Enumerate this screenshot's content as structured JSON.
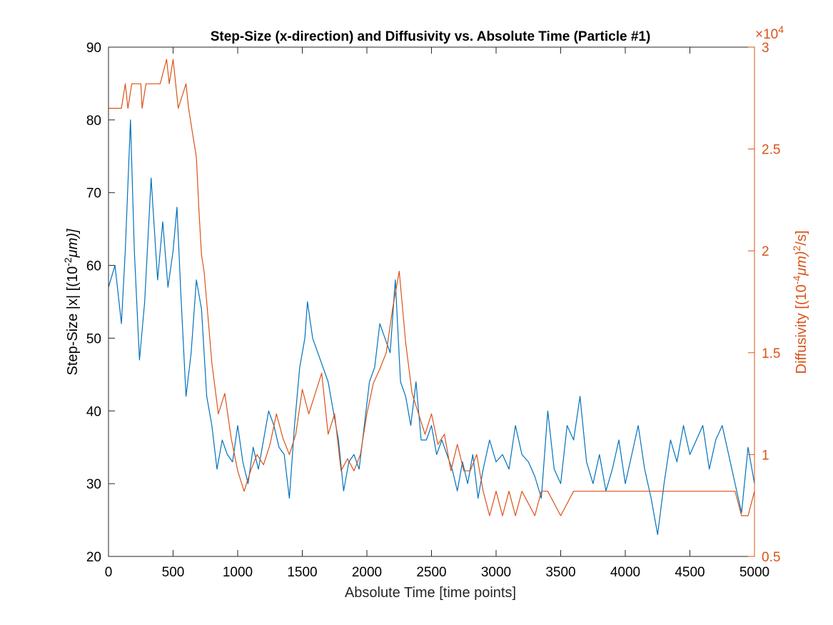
{
  "chart_data": {
    "type": "line",
    "title": "Step-Size (x-direction) and Diffusivity vs. Absolute Time (Particle #1)",
    "xlabel": "Absolute Time [time points]",
    "ylabel_left": "Step-Size |x| [(10",
    "ylabel_left_sup": "-2",
    "ylabel_left_end": "μm)]",
    "ylabel_right": "Diffusivity [(10",
    "ylabel_right_sup1": "-4",
    "ylabel_right_mid": "μm)",
    "ylabel_right_sup2": "2",
    "ylabel_right_end": "/s]",
    "xlim": [
      0,
      5000
    ],
    "ylim_left": [
      20,
      90
    ],
    "ylim_right": [
      0.5,
      3.0
    ],
    "right_axis_exponent": "×10",
    "right_axis_exponent_power": "4",
    "x_ticks": [
      "0",
      "500",
      "1000",
      "1500",
      "2000",
      "2500",
      "3000",
      "3500",
      "4000",
      "4500",
      "5000"
    ],
    "y_left_ticks": [
      "20",
      "30",
      "40",
      "50",
      "60",
      "70",
      "80",
      "90"
    ],
    "y_right_ticks": [
      "0.5",
      "1",
      "1.5",
      "2",
      "2.5",
      "3"
    ],
    "grid": false,
    "colors": {
      "step_size": "#0072BD",
      "diffusivity": "#D95319",
      "axis": "#262626"
    },
    "series": [
      {
        "axis": "left",
        "x": [
          0,
          50,
          100,
          130,
          170,
          200,
          240,
          280,
          330,
          380,
          420,
          460,
          500,
          530,
          560,
          600,
          640,
          680,
          720,
          760,
          800,
          840,
          880,
          920,
          960,
          1000,
          1040,
          1080,
          1120,
          1160,
          1200,
          1240,
          1280,
          1320,
          1360,
          1400,
          1440,
          1480,
          1520,
          1540,
          1580,
          1620,
          1660,
          1700,
          1740,
          1780,
          1820,
          1860,
          1900,
          1940,
          1980,
          2020,
          2060,
          2100,
          2140,
          2180,
          2220,
          2260,
          2300,
          2340,
          2380,
          2420,
          2460,
          2500,
          2540,
          2580,
          2620,
          2660,
          2700,
          2740,
          2780,
          2820,
          2860,
          2900,
          2950,
          3000,
          3050,
          3100,
          3150,
          3200,
          3250,
          3300,
          3350,
          3400,
          3450,
          3500,
          3550,
          3600,
          3650,
          3700,
          3750,
          3800,
          3850,
          3900,
          3950,
          4000,
          4050,
          4100,
          4150,
          4200,
          4250,
          4300,
          4350,
          4400,
          4450,
          4500,
          4550,
          4600,
          4650,
          4700,
          4750,
          4800,
          4850,
          4900,
          4950,
          5000
        ],
        "values": [
          57,
          60,
          52,
          62,
          80,
          62,
          47,
          55,
          72,
          58,
          66,
          57,
          62,
          68,
          56,
          42,
          48,
          58,
          54,
          42,
          38,
          32,
          36,
          34,
          33,
          38,
          33,
          30,
          35,
          32,
          36,
          40,
          38,
          35,
          34,
          28,
          38,
          46,
          50,
          55,
          50,
          48,
          46,
          44,
          40,
          36,
          29,
          33,
          34,
          32,
          38,
          44,
          46,
          52,
          50,
          48,
          58,
          44,
          42,
          38,
          44,
          36,
          36,
          38,
          34,
          36,
          34,
          32,
          29,
          33,
          30,
          34,
          28,
          32,
          36,
          33,
          34,
          32,
          38,
          34,
          33,
          31,
          28,
          40,
          32,
          30,
          38,
          36,
          42,
          33,
          30,
          34,
          29,
          32,
          36,
          30,
          34,
          38,
          32,
          28,
          23,
          30,
          36,
          33,
          38,
          34,
          36,
          38,
          32,
          36,
          38,
          34,
          30,
          26,
          35,
          30
        ]
      },
      {
        "axis": "right",
        "x": [
          0,
          100,
          130,
          150,
          180,
          250,
          260,
          290,
          400,
          450,
          470,
          500,
          520,
          540,
          600,
          620,
          650,
          680,
          700,
          720,
          740,
          760,
          800,
          850,
          900,
          950,
          1000,
          1050,
          1100,
          1150,
          1200,
          1250,
          1300,
          1350,
          1400,
          1450,
          1500,
          1550,
          1600,
          1650,
          1700,
          1750,
          1800,
          1850,
          1900,
          1950,
          2000,
          2050,
          2100,
          2150,
          2200,
          2250,
          2300,
          2350,
          2400,
          2450,
          2500,
          2550,
          2600,
          2650,
          2700,
          2750,
          2800,
          2850,
          2900,
          2950,
          3000,
          3050,
          3100,
          3150,
          3200,
          3300,
          3350,
          3400,
          3500,
          3600,
          3700,
          3800,
          3900,
          4000,
          4100,
          4200,
          4300,
          4400,
          4500,
          4600,
          4700,
          4800,
          4850,
          4900,
          4950,
          5000
        ],
        "values": [
          2.7,
          2.7,
          2.82,
          2.7,
          2.82,
          2.82,
          2.7,
          2.82,
          2.82,
          2.94,
          2.82,
          2.94,
          2.82,
          2.7,
          2.82,
          2.7,
          2.58,
          2.46,
          2.2,
          1.98,
          1.9,
          1.75,
          1.45,
          1.2,
          1.3,
          1.08,
          0.92,
          0.82,
          0.92,
          1.0,
          0.95,
          1.05,
          1.2,
          1.08,
          1.0,
          1.1,
          1.32,
          1.2,
          1.3,
          1.4,
          1.1,
          1.2,
          0.92,
          0.98,
          0.92,
          1.0,
          1.2,
          1.35,
          1.42,
          1.5,
          1.72,
          1.9,
          1.55,
          1.3,
          1.2,
          1.1,
          1.2,
          1.05,
          1.1,
          0.92,
          1.05,
          0.92,
          0.92,
          1.0,
          0.82,
          0.7,
          0.82,
          0.7,
          0.82,
          0.7,
          0.82,
          0.7,
          0.82,
          0.82,
          0.7,
          0.82,
          0.82,
          0.82,
          0.82,
          0.82,
          0.82,
          0.82,
          0.82,
          0.82,
          0.82,
          0.82,
          0.82,
          0.82,
          0.82,
          0.7,
          0.7,
          0.82
        ]
      }
    ]
  }
}
